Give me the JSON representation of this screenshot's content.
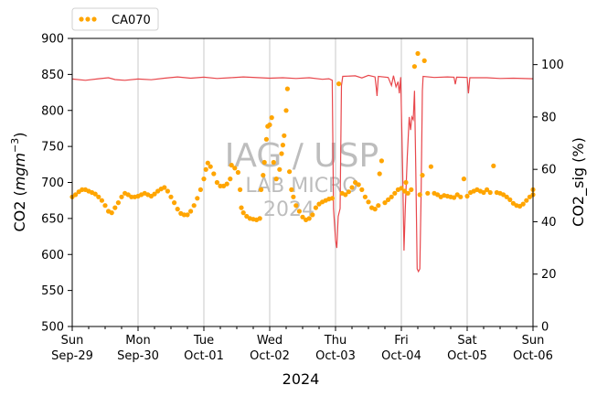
{
  "chart_data": {
    "type": "line+scatter",
    "title": "",
    "xlabel": "2024",
    "ylabel": "CO2 (mgm⁻³)",
    "ylabel_base": "CO2 (",
    "ylabel_unit": "mgm",
    "ylabel_exp": "−3",
    "ylabel_close": ")",
    "y2label": "CO2_sig (%)",
    "ylim": [
      500,
      900
    ],
    "y2lim": [
      0,
      110
    ],
    "xlim_days": [
      0,
      7
    ],
    "x_ticks": [
      {
        "day": "Sun",
        "date": "Sep-29"
      },
      {
        "day": "Mon",
        "date": "Sep-30"
      },
      {
        "day": "Tue",
        "date": "Oct-01"
      },
      {
        "day": "Wed",
        "date": "Oct-02"
      },
      {
        "day": "Thu",
        "date": "Oct-03"
      },
      {
        "day": "Fri",
        "date": "Oct-04"
      },
      {
        "day": "Sat",
        "date": "Oct-05"
      },
      {
        "day": "Sun",
        "date": "Oct-06"
      }
    ],
    "y_ticks": [
      500,
      550,
      600,
      650,
      700,
      750,
      800,
      850,
      900
    ],
    "y2_ticks": [
      0,
      20,
      40,
      60,
      80,
      100
    ],
    "grid": "vertical at daily ticks",
    "legend": {
      "placement": "top-left outside",
      "label": "CA070"
    },
    "colors": {
      "co2": "#ffa500",
      "sig": "#e8474c",
      "sig_axis": "#f4a0a0",
      "grid": "#c8c8c8"
    },
    "watermark": {
      "line1": "IAG / USP",
      "line2": "LAB MICRO",
      "line3": "2024"
    },
    "series": [
      {
        "name": "CA070",
        "axis": "left",
        "style": "dots",
        "points": [
          [
            0.0,
            680
          ],
          [
            0.05,
            683
          ],
          [
            0.1,
            687
          ],
          [
            0.15,
            690
          ],
          [
            0.2,
            690
          ],
          [
            0.25,
            688
          ],
          [
            0.3,
            686
          ],
          [
            0.35,
            684
          ],
          [
            0.4,
            680
          ],
          [
            0.45,
            675
          ],
          [
            0.5,
            668
          ],
          [
            0.55,
            660
          ],
          [
            0.6,
            658
          ],
          [
            0.65,
            665
          ],
          [
            0.7,
            672
          ],
          [
            0.75,
            680
          ],
          [
            0.8,
            685
          ],
          [
            0.85,
            683
          ],
          [
            0.9,
            680
          ],
          [
            0.95,
            680
          ],
          [
            1.0,
            681
          ],
          [
            1.05,
            683
          ],
          [
            1.1,
            685
          ],
          [
            1.15,
            683
          ],
          [
            1.2,
            681
          ],
          [
            1.25,
            684
          ],
          [
            1.3,
            688
          ],
          [
            1.35,
            691
          ],
          [
            1.4,
            693
          ],
          [
            1.45,
            688
          ],
          [
            1.5,
            680
          ],
          [
            1.55,
            672
          ],
          [
            1.6,
            663
          ],
          [
            1.65,
            657
          ],
          [
            1.7,
            655
          ],
          [
            1.75,
            655
          ],
          [
            1.8,
            660
          ],
          [
            1.85,
            668
          ],
          [
            1.9,
            678
          ],
          [
            1.95,
            690
          ],
          [
            2.0,
            705
          ],
          [
            2.03,
            718
          ],
          [
            2.06,
            727
          ],
          [
            2.1,
            722
          ],
          [
            2.15,
            712
          ],
          [
            2.2,
            700
          ],
          [
            2.25,
            695
          ],
          [
            2.3,
            695
          ],
          [
            2.35,
            698
          ],
          [
            2.4,
            705
          ],
          [
            2.42,
            724
          ],
          [
            2.47,
            720
          ],
          [
            2.52,
            714
          ],
          [
            2.55,
            690
          ],
          [
            2.57,
            665
          ],
          [
            2.6,
            658
          ],
          [
            2.65,
            653
          ],
          [
            2.7,
            650
          ],
          [
            2.75,
            649
          ],
          [
            2.8,
            648
          ],
          [
            2.85,
            650
          ],
          [
            2.87,
            690
          ],
          [
            2.9,
            710
          ],
          [
            2.92,
            728
          ],
          [
            2.95,
            760
          ],
          [
            2.97,
            778
          ],
          [
            3.0,
            780
          ],
          [
            3.03,
            790
          ],
          [
            3.06,
            728
          ],
          [
            3.1,
            705
          ],
          [
            3.15,
            718
          ],
          [
            3.18,
            740
          ],
          [
            3.2,
            752
          ],
          [
            3.22,
            765
          ],
          [
            3.25,
            800
          ],
          [
            3.27,
            830
          ],
          [
            3.3,
            715
          ],
          [
            3.33,
            690
          ],
          [
            3.36,
            680
          ],
          [
            3.4,
            668
          ],
          [
            3.45,
            660
          ],
          [
            3.5,
            652
          ],
          [
            3.55,
            648
          ],
          [
            3.6,
            650
          ],
          [
            3.65,
            655
          ],
          [
            3.7,
            665
          ],
          [
            3.75,
            670
          ],
          [
            3.8,
            673
          ],
          [
            3.85,
            675
          ],
          [
            3.9,
            677
          ],
          [
            3.95,
            678
          ],
          [
            4.05,
            837
          ],
          [
            4.1,
            685
          ],
          [
            4.15,
            683
          ],
          [
            4.2,
            687
          ],
          [
            4.25,
            693
          ],
          [
            4.3,
            700
          ],
          [
            4.35,
            697
          ],
          [
            4.4,
            690
          ],
          [
            4.45,
            680
          ],
          [
            4.5,
            673
          ],
          [
            4.55,
            665
          ],
          [
            4.6,
            663
          ],
          [
            4.65,
            668
          ],
          [
            4.67,
            712
          ],
          [
            4.7,
            730
          ],
          [
            4.75,
            672
          ],
          [
            4.8,
            676
          ],
          [
            4.85,
            680
          ],
          [
            4.9,
            685
          ],
          [
            4.95,
            690
          ],
          [
            5.0,
            692
          ],
          [
            5.05,
            688
          ],
          [
            5.07,
            700
          ],
          [
            5.1,
            685
          ],
          [
            5.15,
            690
          ],
          [
            5.2,
            861
          ],
          [
            5.25,
            879
          ],
          [
            5.28,
            683
          ],
          [
            5.32,
            710
          ],
          [
            5.35,
            869
          ],
          [
            5.4,
            685
          ],
          [
            5.45,
            722
          ],
          [
            5.5,
            685
          ],
          [
            5.55,
            683
          ],
          [
            5.6,
            680
          ],
          [
            5.65,
            682
          ],
          [
            5.7,
            681
          ],
          [
            5.75,
            680
          ],
          [
            5.8,
            679
          ],
          [
            5.85,
            683
          ],
          [
            5.9,
            680
          ],
          [
            5.95,
            705
          ],
          [
            6.0,
            681
          ],
          [
            6.05,
            686
          ],
          [
            6.1,
            688
          ],
          [
            6.15,
            690
          ],
          [
            6.2,
            688
          ],
          [
            6.25,
            686
          ],
          [
            6.3,
            690
          ],
          [
            6.35,
            686
          ],
          [
            6.4,
            723
          ],
          [
            6.45,
            686
          ],
          [
            6.5,
            685
          ],
          [
            6.55,
            683
          ],
          [
            6.6,
            680
          ],
          [
            6.65,
            676
          ],
          [
            6.7,
            671
          ],
          [
            6.75,
            668
          ],
          [
            6.8,
            667
          ],
          [
            6.85,
            670
          ],
          [
            6.9,
            675
          ],
          [
            6.95,
            680
          ],
          [
            7.0,
            683
          ],
          [
            7.0,
            690
          ]
        ]
      },
      {
        "name": "CO2_sig",
        "axis": "right",
        "style": "line",
        "points": [
          [
            0.0,
            94.5
          ],
          [
            0.2,
            94.0
          ],
          [
            0.4,
            94.6
          ],
          [
            0.55,
            95.0
          ],
          [
            0.65,
            94.3
          ],
          [
            0.8,
            94.0
          ],
          [
            1.0,
            94.5
          ],
          [
            1.2,
            94.2
          ],
          [
            1.4,
            94.8
          ],
          [
            1.6,
            95.3
          ],
          [
            1.8,
            94.8
          ],
          [
            2.0,
            95.2
          ],
          [
            2.2,
            94.7
          ],
          [
            2.4,
            95.0
          ],
          [
            2.6,
            95.3
          ],
          [
            3.0,
            94.8
          ],
          [
            3.2,
            95.0
          ],
          [
            3.4,
            94.7
          ],
          [
            3.6,
            95.0
          ],
          [
            3.8,
            94.4
          ],
          [
            3.9,
            94.6
          ],
          [
            3.95,
            94.0
          ],
          [
            3.97,
            45
          ],
          [
            4.0,
            33
          ],
          [
            4.02,
            30
          ],
          [
            4.04,
            42
          ],
          [
            4.07,
            45
          ],
          [
            4.09,
            92
          ],
          [
            4.11,
            95.5
          ],
          [
            4.3,
            95.7
          ],
          [
            4.4,
            94.9
          ],
          [
            4.5,
            95.9
          ],
          [
            4.6,
            95.3
          ],
          [
            4.62,
            91.0
          ],
          [
            4.63,
            88.0
          ],
          [
            4.65,
            95.5
          ],
          [
            4.8,
            95.1
          ],
          [
            4.85,
            92.0
          ],
          [
            4.88,
            95.8
          ],
          [
            4.92,
            91.5
          ],
          [
            4.95,
            93.5
          ],
          [
            4.97,
            89.0
          ],
          [
            4.99,
            95.2
          ],
          [
            5.02,
            60.0
          ],
          [
            5.04,
            29.0
          ],
          [
            5.06,
            45
          ],
          [
            5.09,
            65.0
          ],
          [
            5.12,
            80.0
          ],
          [
            5.14,
            75.0
          ],
          [
            5.16,
            80.0
          ],
          [
            5.18,
            79.0
          ],
          [
            5.2,
            90.0
          ],
          [
            5.22,
            60.0
          ],
          [
            5.24,
            22.0
          ],
          [
            5.26,
            21.0
          ],
          [
            5.28,
            22.0
          ],
          [
            5.3,
            50.0
          ],
          [
            5.32,
            90.0
          ],
          [
            5.33,
            95.5
          ],
          [
            5.5,
            95.1
          ],
          [
            5.7,
            95.3
          ],
          [
            5.8,
            95.2
          ],
          [
            5.82,
            92.5
          ],
          [
            5.84,
            95.2
          ],
          [
            6.0,
            95.1
          ],
          [
            6.02,
            89.0
          ],
          [
            6.04,
            95.0
          ],
          [
            6.3,
            95.0
          ],
          [
            6.5,
            94.7
          ],
          [
            6.7,
            94.8
          ],
          [
            7.0,
            94.6
          ]
        ]
      }
    ]
  }
}
